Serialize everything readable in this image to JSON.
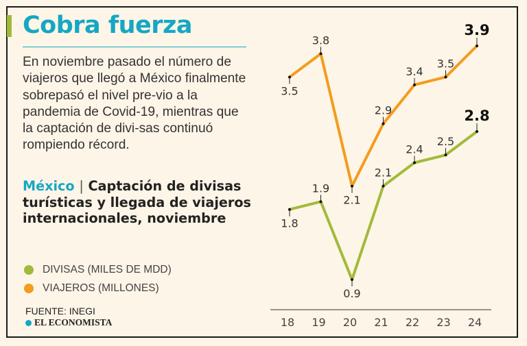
{
  "header": {
    "title": "Cobra fuerza",
    "intro": "En noviembre pasado el número de viajeros que llegó a México finalmente sobrepasó el nivel pre-vio a la pandemia de Covid-19, mientras que la captación de divi-sas continuó rompiendo récord."
  },
  "chart_heading": {
    "country": "México",
    "separator": "|",
    "text": "Captación de divisas turísticas y llegada de viajeros internacionales, noviembre"
  },
  "legend": [
    {
      "label": "DIVISAS (MILES DE MDD)",
      "color": "#a2ba3a"
    },
    {
      "label": "VIAJEROS (MILLONES)",
      "color": "#f39c1d"
    }
  ],
  "footer": {
    "source": "FUENTE: INEGI",
    "brand": "EL ECONOMISTA"
  },
  "chart_data": {
    "type": "line",
    "title": "Captación de divisas turísticas y llegada de viajeros internacionales, noviembre",
    "categories": [
      "18",
      "19",
      "20",
      "21",
      "22",
      "23",
      "24"
    ],
    "series": [
      {
        "name": "VIAJEROS (MILLONES)",
        "color": "#f39c1d",
        "values": [
          3.5,
          3.8,
          2.1,
          2.9,
          3.4,
          3.5,
          3.9
        ]
      },
      {
        "name": "DIVISAS (MILES DE MDD)",
        "color": "#a2ba3a",
        "values": [
          1.8,
          1.9,
          0.9,
          2.1,
          2.4,
          2.5,
          2.8
        ]
      }
    ],
    "xlabel": "",
    "ylabel": "",
    "grid": false,
    "legend_position": "left"
  }
}
